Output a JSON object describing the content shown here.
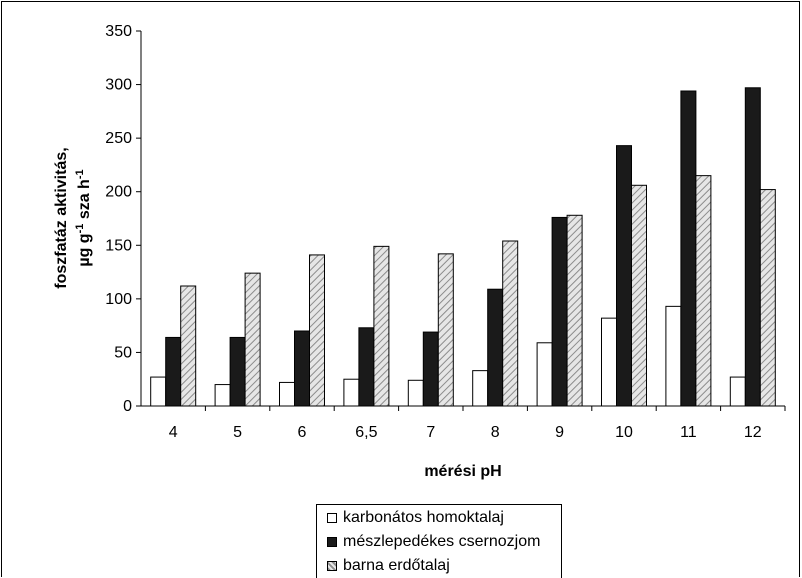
{
  "chart_data": {
    "type": "bar",
    "xlabel": "mérési pH",
    "ylabel_line1": "foszfatáz aktivitás,",
    "ylabel_line2_parts": [
      "µg g",
      "-1",
      " sza h",
      "-1"
    ],
    "categories": [
      "4",
      "5",
      "6",
      "6,5",
      "7",
      "8",
      "9",
      "10",
      "11",
      "12"
    ],
    "ylim": [
      0,
      350
    ],
    "yticks": [
      "0",
      "50",
      "100",
      "150",
      "200",
      "250",
      "300",
      "350"
    ],
    "grid": false,
    "legend_position": "bottom",
    "series": [
      {
        "name": "karbonátos homoktalaj",
        "fill": "#ffffff",
        "values": [
          27,
          20,
          22,
          25,
          24,
          33,
          59,
          82,
          93,
          27
        ]
      },
      {
        "name": "mészlepedékes csernozjom",
        "fill": "#1a1a1a",
        "values": [
          64,
          64,
          70,
          73,
          69,
          109,
          176,
          243,
          294,
          297
        ]
      },
      {
        "name": "barna erdőtalaj",
        "fill": "hatched-gray",
        "values": [
          112,
          124,
          141,
          149,
          142,
          154,
          178,
          206,
          215,
          202
        ]
      }
    ]
  }
}
